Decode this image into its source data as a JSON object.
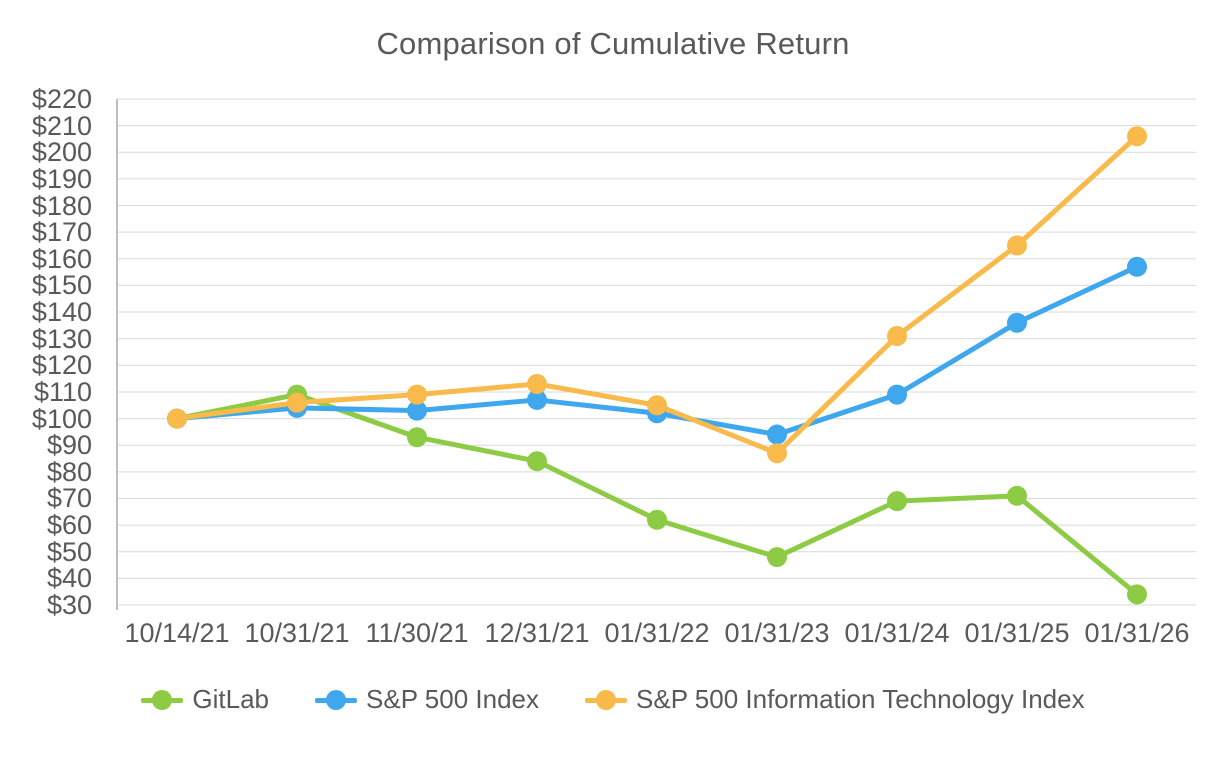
{
  "chart_data": {
    "type": "line",
    "title": "Comparison of Cumulative Return",
    "categories": [
      "10/14/21",
      "10/31/21",
      "11/30/21",
      "12/31/21",
      "01/31/22",
      "01/31/23",
      "01/31/24",
      "01/31/25",
      "01/31/26"
    ],
    "series": [
      {
        "name": "GitLab",
        "color": "#8DCB45",
        "values": [
          100,
          109,
          93,
          84,
          62,
          48,
          69,
          71,
          34
        ]
      },
      {
        "name": "S&P 500 Index",
        "color": "#3FA7EE",
        "values": [
          100,
          104,
          103,
          107,
          102,
          94,
          109,
          136,
          157
        ]
      },
      {
        "name": "S&P 500 Information Technology Index",
        "color": "#F8BA4B",
        "values": [
          100,
          106,
          109,
          113,
          105,
          87,
          131,
          165,
          206
        ]
      }
    ],
    "y_axis": {
      "min": 30,
      "max": 220,
      "step": 10,
      "prefix": "$"
    },
    "xlabel": "",
    "ylabel": "",
    "grid": true,
    "legend_position": "bottom"
  },
  "colors": {
    "text": "#595959",
    "gridline": "#D9D9D9",
    "axis_line": "#BFBFBF",
    "background": "#FFFFFF"
  }
}
